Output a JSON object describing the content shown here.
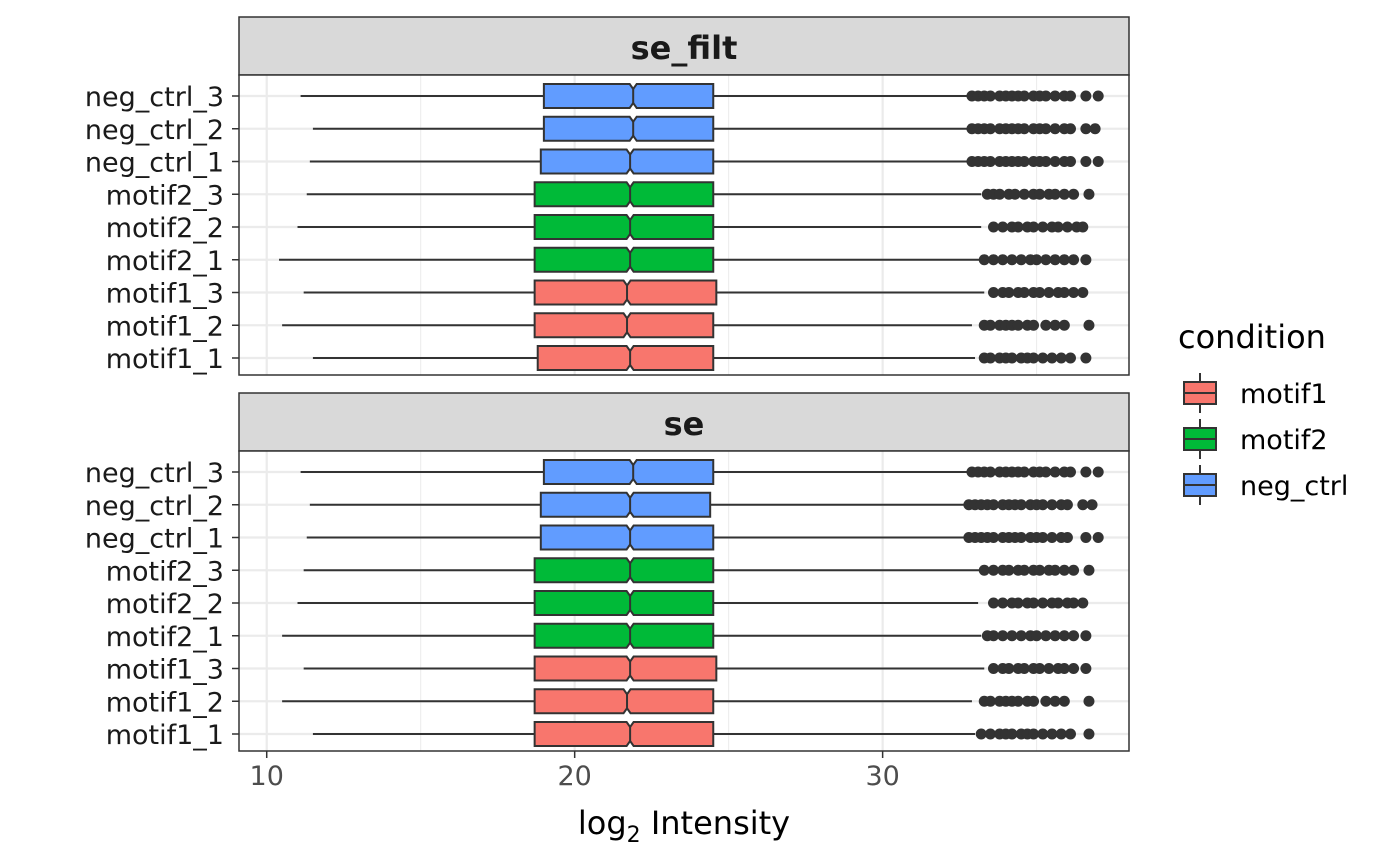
{
  "chart_data": {
    "type": "boxplot",
    "orientation": "horizontal",
    "xlabel": "log2 Intensity",
    "xlabel_parts": {
      "base": "log",
      "subscript": "2",
      "rest": " Intensity"
    },
    "xlim": [
      9.1,
      38.0
    ],
    "xticks": [
      10,
      20,
      30
    ],
    "xtick_labels": [
      "10",
      "20",
      "30"
    ],
    "grid": true,
    "notched": true,
    "legend": {
      "title": "condition",
      "placement": "right",
      "entries": [
        {
          "label": "motif1",
          "color": "#F8766D"
        },
        {
          "label": "motif2",
          "color": "#00BA38"
        },
        {
          "label": "neg_ctrl",
          "color": "#619CFF"
        }
      ]
    },
    "categories": [
      "neg_ctrl_3",
      "neg_ctrl_2",
      "neg_ctrl_1",
      "motif2_3",
      "motif2_2",
      "motif2_1",
      "motif1_3",
      "motif1_2",
      "motif1_1"
    ],
    "panels": [
      {
        "title": "se_filt",
        "boxes": [
          {
            "sample": "neg_ctrl_3",
            "condition": "neg_ctrl",
            "whisker_low": 11.1,
            "q1": 19.0,
            "median": 21.9,
            "q3": 24.5,
            "whisker_high": 32.8,
            "outliers": [
              32.9,
              33.1,
              33.3,
              33.5,
              33.8,
              34.0,
              34.2,
              34.4,
              34.6,
              34.9,
              35.1,
              35.3,
              35.6,
              35.9,
              36.1,
              36.6,
              37.0
            ]
          },
          {
            "sample": "neg_ctrl_2",
            "condition": "neg_ctrl",
            "whisker_low": 11.5,
            "q1": 19.0,
            "median": 21.9,
            "q3": 24.5,
            "whisker_high": 32.8,
            "outliers": [
              32.9,
              33.1,
              33.3,
              33.5,
              33.8,
              34.0,
              34.2,
              34.4,
              34.6,
              34.9,
              35.1,
              35.3,
              35.6,
              35.9,
              36.1,
              36.6,
              36.9
            ]
          },
          {
            "sample": "neg_ctrl_1",
            "condition": "neg_ctrl",
            "whisker_low": 11.4,
            "q1": 18.9,
            "median": 21.8,
            "q3": 24.5,
            "whisker_high": 32.8,
            "outliers": [
              32.9,
              33.1,
              33.3,
              33.5,
              33.8,
              34.0,
              34.2,
              34.4,
              34.6,
              34.9,
              35.1,
              35.3,
              35.6,
              35.9,
              36.1,
              36.6,
              37.0
            ]
          },
          {
            "sample": "motif2_3",
            "condition": "motif2",
            "whisker_low": 11.3,
            "q1": 18.7,
            "median": 21.8,
            "q3": 24.5,
            "whisker_high": 33.2,
            "outliers": [
              33.4,
              33.6,
              33.8,
              34.1,
              34.3,
              34.6,
              34.9,
              35.1,
              35.4,
              35.6,
              35.9,
              36.2,
              36.7
            ]
          },
          {
            "sample": "motif2_2",
            "condition": "motif2",
            "whisker_low": 11.0,
            "q1": 18.7,
            "median": 21.8,
            "q3": 24.5,
            "whisker_high": 33.2,
            "outliers": [
              33.6,
              33.9,
              34.2,
              34.4,
              34.7,
              34.9,
              35.2,
              35.5,
              35.7,
              36.0,
              36.3,
              36.5
            ]
          },
          {
            "sample": "motif2_1",
            "condition": "motif2",
            "whisker_low": 10.4,
            "q1": 18.7,
            "median": 21.8,
            "q3": 24.5,
            "whisker_high": 33.2,
            "outliers": [
              33.3,
              33.6,
              33.9,
              34.2,
              34.5,
              34.8,
              35.0,
              35.3,
              35.6,
              35.9,
              36.2,
              36.6
            ]
          },
          {
            "sample": "motif1_3",
            "condition": "motif1",
            "whisker_low": 11.2,
            "q1": 18.7,
            "median": 21.7,
            "q3": 24.6,
            "whisker_high": 33.3,
            "outliers": [
              33.6,
              33.9,
              34.1,
              34.4,
              34.6,
              34.9,
              35.1,
              35.4,
              35.7,
              35.9,
              36.2,
              36.5
            ]
          },
          {
            "sample": "motif1_2",
            "condition": "motif1",
            "whisker_low": 10.5,
            "q1": 18.7,
            "median": 21.7,
            "q3": 24.5,
            "whisker_high": 32.9,
            "outliers": [
              33.3,
              33.5,
              33.8,
              34.0,
              34.2,
              34.4,
              34.7,
              34.9,
              35.3,
              35.6,
              35.9,
              36.7
            ]
          },
          {
            "sample": "motif1_1",
            "condition": "motif1",
            "whisker_low": 11.5,
            "q1": 18.8,
            "median": 21.8,
            "q3": 24.5,
            "whisker_high": 33.0,
            "outliers": [
              33.3,
              33.5,
              33.8,
              34.0,
              34.2,
              34.5,
              34.7,
              34.9,
              35.2,
              35.5,
              35.8,
              36.1,
              36.6
            ]
          }
        ]
      },
      {
        "title": "se",
        "boxes": [
          {
            "sample": "neg_ctrl_3",
            "condition": "neg_ctrl",
            "whisker_low": 11.1,
            "q1": 19.0,
            "median": 21.9,
            "q3": 24.5,
            "whisker_high": 32.8,
            "outliers": [
              32.9,
              33.1,
              33.3,
              33.5,
              33.8,
              34.0,
              34.2,
              34.4,
              34.6,
              34.9,
              35.1,
              35.3,
              35.6,
              35.9,
              36.1,
              36.6,
              37.0
            ]
          },
          {
            "sample": "neg_ctrl_2",
            "condition": "neg_ctrl",
            "whisker_low": 11.4,
            "q1": 18.9,
            "median": 21.8,
            "q3": 24.4,
            "whisker_high": 32.7,
            "outliers": [
              32.8,
              33.0,
              33.2,
              33.4,
              33.6,
              33.9,
              34.1,
              34.3,
              34.5,
              34.8,
              35.0,
              35.2,
              35.5,
              35.8,
              36.0,
              36.5,
              36.8
            ]
          },
          {
            "sample": "neg_ctrl_1",
            "condition": "neg_ctrl",
            "whisker_low": 11.3,
            "q1": 18.9,
            "median": 21.8,
            "q3": 24.5,
            "whisker_high": 32.7,
            "outliers": [
              32.8,
              33.0,
              33.2,
              33.4,
              33.6,
              33.9,
              34.1,
              34.3,
              34.5,
              34.8,
              35.0,
              35.2,
              35.5,
              35.8,
              36.0,
              36.6,
              37.0
            ]
          },
          {
            "sample": "motif2_3",
            "condition": "motif2",
            "whisker_low": 11.2,
            "q1": 18.7,
            "median": 21.8,
            "q3": 24.5,
            "whisker_high": 33.2,
            "outliers": [
              33.3,
              33.6,
              33.9,
              34.1,
              34.4,
              34.6,
              34.9,
              35.1,
              35.4,
              35.6,
              35.9,
              36.2,
              36.7
            ]
          },
          {
            "sample": "motif2_2",
            "condition": "motif2",
            "whisker_low": 11.0,
            "q1": 18.7,
            "median": 21.8,
            "q3": 24.5,
            "whisker_high": 33.1,
            "outliers": [
              33.6,
              33.9,
              34.2,
              34.4,
              34.7,
              34.9,
              35.2,
              35.5,
              35.7,
              36.0,
              36.2,
              36.5
            ]
          },
          {
            "sample": "motif2_1",
            "condition": "motif2",
            "whisker_low": 10.5,
            "q1": 18.7,
            "median": 21.8,
            "q3": 24.5,
            "whisker_high": 33.2,
            "outliers": [
              33.4,
              33.6,
              33.9,
              34.2,
              34.5,
              34.8,
              35.0,
              35.3,
              35.6,
              35.9,
              36.2,
              36.6
            ]
          },
          {
            "sample": "motif1_3",
            "condition": "motif1",
            "whisker_low": 11.2,
            "q1": 18.7,
            "median": 21.8,
            "q3": 24.6,
            "whisker_high": 33.3,
            "outliers": [
              33.6,
              33.9,
              34.1,
              34.4,
              34.6,
              34.9,
              35.1,
              35.4,
              35.7,
              35.9,
              36.2,
              36.6
            ]
          },
          {
            "sample": "motif1_2",
            "condition": "motif1",
            "whisker_low": 10.5,
            "q1": 18.7,
            "median": 21.7,
            "q3": 24.5,
            "whisker_high": 32.9,
            "outliers": [
              33.3,
              33.5,
              33.8,
              34.0,
              34.2,
              34.4,
              34.7,
              34.9,
              35.3,
              35.6,
              35.9,
              36.7
            ]
          },
          {
            "sample": "motif1_1",
            "condition": "motif1",
            "whisker_low": 11.5,
            "q1": 18.7,
            "median": 21.8,
            "q3": 24.5,
            "whisker_high": 33.0,
            "outliers": [
              33.2,
              33.5,
              33.8,
              34.0,
              34.2,
              34.5,
              34.7,
              34.9,
              35.2,
              35.5,
              35.8,
              36.1,
              36.7
            ]
          }
        ]
      }
    ]
  }
}
